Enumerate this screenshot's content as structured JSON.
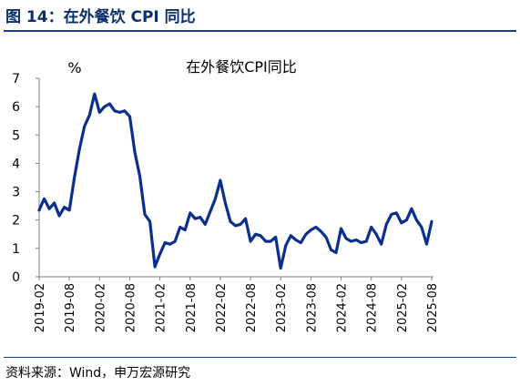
{
  "figure": {
    "title": "图 14：在外餐饮 CPI 同比",
    "source": "资料来源：Wind，申万宏源研究"
  },
  "colors": {
    "line": "#0b2f8c",
    "title": "#0b2f6e",
    "rule": "#17408b",
    "axis": "#7f7f7f"
  },
  "chart_data": {
    "type": "line",
    "title": "在外餐饮CPI同比",
    "ylabel": "%",
    "xlabel": "",
    "ylim": [
      0,
      7
    ],
    "yticks": [
      0,
      1,
      2,
      3,
      4,
      5,
      6,
      7
    ],
    "xticks": [
      "2019-02",
      "2019-08",
      "2020-02",
      "2020-08",
      "2021-02",
      "2021-08",
      "2022-02",
      "2022-08",
      "2023-02",
      "2023-08",
      "2024-02",
      "2024-08",
      "2025-02",
      "2025-08"
    ],
    "grid": false,
    "series": [
      {
        "name": "",
        "x": [
          "2019-02",
          "2019-03",
          "2019-04",
          "2019-05",
          "2019-06",
          "2019-07",
          "2019-08",
          "2019-09",
          "2019-10",
          "2019-11",
          "2019-12",
          "2020-01",
          "2020-02",
          "2020-03",
          "2020-04",
          "2020-05",
          "2020-06",
          "2020-07",
          "2020-08",
          "2020-09",
          "2020-10",
          "2020-11",
          "2020-12",
          "2021-01",
          "2021-02",
          "2021-03",
          "2021-04",
          "2021-05",
          "2021-06",
          "2021-07",
          "2021-08",
          "2021-09",
          "2021-10",
          "2021-11",
          "2021-12",
          "2022-01",
          "2022-02",
          "2022-03",
          "2022-04",
          "2022-05",
          "2022-06",
          "2022-07",
          "2022-08",
          "2022-09",
          "2022-10",
          "2022-11",
          "2022-12",
          "2023-01",
          "2023-02",
          "2023-03",
          "2023-04",
          "2023-05",
          "2023-06",
          "2023-07",
          "2023-08",
          "2023-09",
          "2023-10",
          "2023-11",
          "2023-12",
          "2024-01",
          "2024-02",
          "2024-03",
          "2024-04",
          "2024-05",
          "2024-06",
          "2024-07",
          "2024-08",
          "2024-09",
          "2024-10",
          "2024-11",
          "2024-12",
          "2025-01",
          "2025-02",
          "2025-03",
          "2025-04",
          "2025-05",
          "2025-06",
          "2025-07",
          "2025-08"
        ],
        "values": [
          2.35,
          2.75,
          2.4,
          2.6,
          2.15,
          2.45,
          2.35,
          3.5,
          4.5,
          5.3,
          5.7,
          6.45,
          5.8,
          6.0,
          6.1,
          5.85,
          5.8,
          5.85,
          5.65,
          4.4,
          3.55,
          2.2,
          1.95,
          0.35,
          0.8,
          1.2,
          1.15,
          1.25,
          1.75,
          1.65,
          2.25,
          2.05,
          2.1,
          1.85,
          2.3,
          2.75,
          3.4,
          2.6,
          1.95,
          1.8,
          1.85,
          2.05,
          1.25,
          1.5,
          1.45,
          1.25,
          1.25,
          1.4,
          0.3,
          1.1,
          1.45,
          1.3,
          1.2,
          1.5,
          1.65,
          1.75,
          1.6,
          1.4,
          0.95,
          0.85,
          1.7,
          1.35,
          1.25,
          1.3,
          1.2,
          1.25,
          1.75,
          1.5,
          1.15,
          1.85,
          2.2,
          2.25,
          1.9,
          2.0,
          2.4,
          2.0,
          1.75,
          1.15,
          1.95
        ]
      }
    ]
  }
}
